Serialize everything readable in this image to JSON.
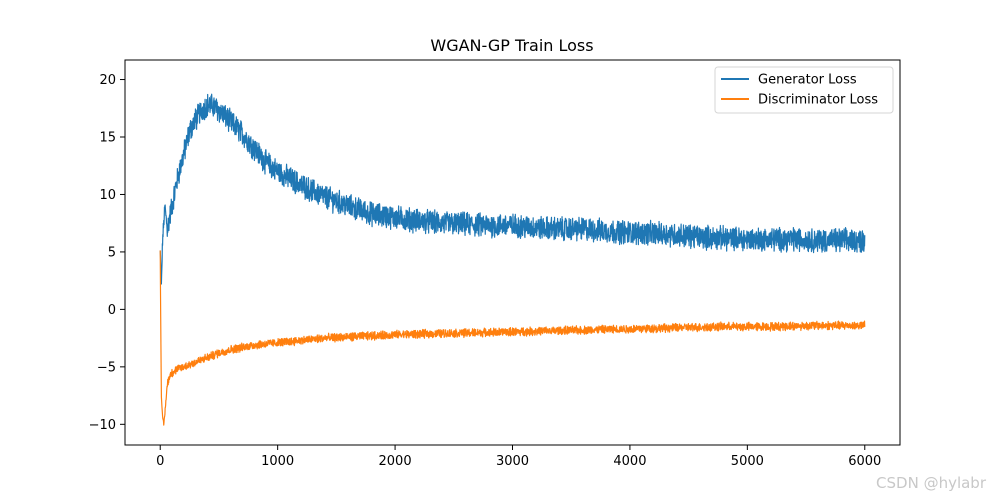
{
  "watermark": "CSDN @hylabr",
  "chart_data": {
    "type": "line",
    "title": "WGAN-GP Train Loss",
    "xlabel": "",
    "ylabel": "",
    "xlim": [
      -300,
      6300
    ],
    "ylim": [
      -11.8,
      21.7
    ],
    "x_ticks": [
      0,
      1000,
      2000,
      3000,
      4000,
      5000,
      6000
    ],
    "y_ticks": [
      -10,
      -5,
      0,
      5,
      10,
      15,
      20
    ],
    "x_tick_labels": [
      "0",
      "1000",
      "2000",
      "3000",
      "4000",
      "5000",
      "6000"
    ],
    "y_tick_labels": [
      "−10",
      "−5",
      "0",
      "5",
      "10",
      "15",
      "20"
    ],
    "grid": false,
    "legend_position": "top-right",
    "series": [
      {
        "name": "Generator Loss",
        "color": "#1f77b4",
        "noise_amplitude": 0.9,
        "x": [
          0,
          10,
          20,
          40,
          60,
          80,
          100,
          150,
          200,
          250,
          300,
          350,
          400,
          450,
          500,
          600,
          700,
          800,
          900,
          1000,
          1200,
          1400,
          1600,
          1800,
          2000,
          2200,
          2400,
          2600,
          2800,
          3000,
          3200,
          3400,
          3600,
          3800,
          4000,
          4200,
          4400,
          4600,
          4800,
          5000,
          5200,
          5400,
          5600,
          5800,
          6000
        ],
        "y": [
          5.0,
          2.0,
          6.0,
          9.0,
          7.0,
          8.0,
          9.0,
          11.5,
          13.5,
          15.5,
          16.5,
          17.3,
          17.8,
          17.7,
          17.3,
          16.3,
          15.3,
          14.0,
          12.8,
          12.0,
          10.8,
          9.8,
          9.0,
          8.3,
          8.0,
          7.7,
          7.5,
          7.4,
          7.3,
          7.3,
          7.1,
          7.0,
          7.0,
          6.8,
          6.7,
          6.6,
          6.5,
          6.3,
          6.2,
          6.1,
          6.1,
          6.1,
          6.0,
          6.0,
          6.0
        ]
      },
      {
        "name": "Discriminator Loss",
        "color": "#ff7f0e",
        "noise_amplitude": 0.32,
        "x": [
          0,
          5,
          10,
          20,
          30,
          40,
          60,
          80,
          100,
          150,
          200,
          300,
          400,
          500,
          600,
          800,
          1000,
          1200,
          1400,
          1600,
          1800,
          2000,
          2400,
          2800,
          3200,
          3600,
          4000,
          4400,
          4800,
          5200,
          5600,
          6000
        ],
        "y": [
          5.0,
          -2.0,
          -7.5,
          -9.5,
          -10.0,
          -9.0,
          -6.5,
          -5.8,
          -5.5,
          -5.2,
          -5.0,
          -4.6,
          -4.2,
          -3.8,
          -3.5,
          -3.1,
          -2.9,
          -2.7,
          -2.5,
          -2.4,
          -2.3,
          -2.2,
          -2.1,
          -2.0,
          -1.9,
          -1.8,
          -1.7,
          -1.6,
          -1.5,
          -1.5,
          -1.4,
          -1.4
        ]
      }
    ]
  }
}
